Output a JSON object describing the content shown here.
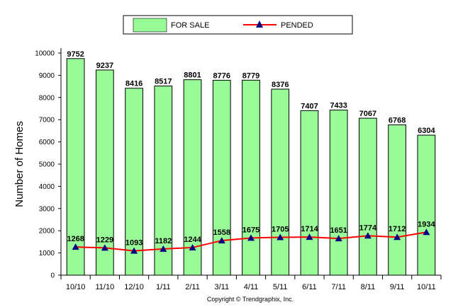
{
  "chart_data": {
    "type": "bar",
    "categories": [
      "10/10",
      "11/10",
      "12/10",
      "1/11",
      "2/11",
      "3/11",
      "4/11",
      "5/11",
      "6/11",
      "7/11",
      "8/11",
      "9/11",
      "10/11"
    ],
    "series": [
      {
        "name": "FOR SALE",
        "type": "bar",
        "color": "#98fb98",
        "values": [
          9752,
          9237,
          8416,
          8517,
          8801,
          8776,
          8779,
          8376,
          7407,
          7433,
          7067,
          6768,
          6304
        ]
      },
      {
        "name": "PENDED",
        "type": "line",
        "color": "#ff0000",
        "marker_color": "#000080",
        "values": [
          1268,
          1229,
          1093,
          1182,
          1244,
          1558,
          1675,
          1705,
          1714,
          1651,
          1774,
          1712,
          1934
        ]
      }
    ],
    "ylabel": "Number of Homes",
    "ylim": [
      0,
      10000
    ],
    "yticks": [
      0,
      1000,
      2000,
      3000,
      4000,
      5000,
      6000,
      7000,
      8000,
      9000,
      10000
    ],
    "grid": false,
    "legend": "top-center",
    "data_labels": true
  },
  "copyright": "Copyright © Trendgraphix, Inc."
}
